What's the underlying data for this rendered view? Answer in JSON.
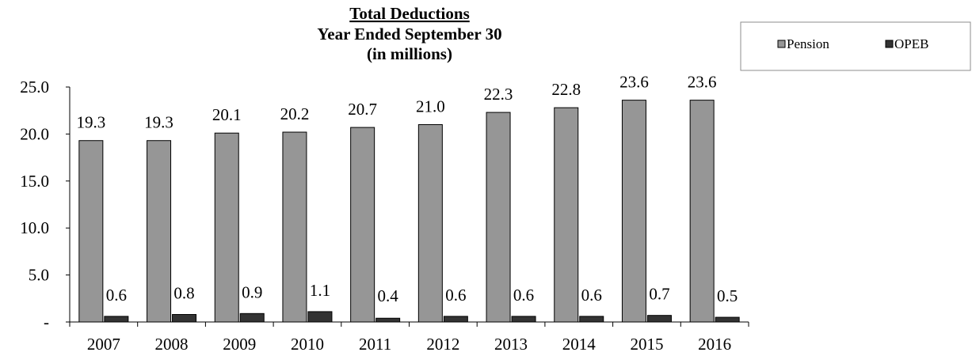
{
  "chart_data": {
    "type": "bar",
    "title": "Total Deductions",
    "subtitle": [
      "Year Ended September 30",
      "(in millions)"
    ],
    "categories": [
      "2007",
      "2008",
      "2009",
      "2010",
      "2011",
      "2012",
      "2013",
      "2014",
      "2015",
      "2016"
    ],
    "series": [
      {
        "name": "Pension",
        "color": "#969696",
        "values": [
          19.3,
          19.3,
          20.1,
          20.2,
          20.7,
          21.0,
          22.3,
          22.8,
          23.6,
          23.6
        ],
        "labels": [
          "19.3",
          "19.3",
          "20.1",
          "20.2",
          "20.7",
          "21.0",
          "22.3",
          "22.8",
          "23.6",
          "23.6"
        ]
      },
      {
        "name": "OPEB",
        "color": "#333333",
        "values": [
          0.6,
          0.8,
          0.9,
          1.1,
          0.4,
          0.6,
          0.6,
          0.6,
          0.7,
          0.5
        ],
        "labels": [
          "0.6",
          "0.8",
          "0.9",
          "1.1",
          "0.4",
          "0.6",
          "0.6",
          "0.6",
          "0.7",
          "0.5"
        ]
      }
    ],
    "yticks": [
      "-",
      "5.0",
      "10.0",
      "15.0",
      "20.0",
      "25.0"
    ],
    "ylim": [
      0,
      25
    ],
    "grid": false,
    "legend_position": "top-right"
  }
}
